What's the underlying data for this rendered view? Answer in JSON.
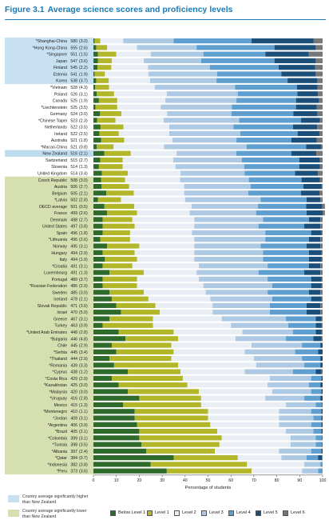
{
  "figure": {
    "number": "Figure 3.1",
    "title": "Average science scores and proficiency levels"
  },
  "legend_groups": [
    {
      "label": "Country average significantly higher than New Zealand",
      "color": "#c8e1f2"
    },
    {
      "label": "Country average significantly lower than New Zealand",
      "color": "#d5dfb0"
    }
  ],
  "colors": {
    "group_higher": "#c8e1f2",
    "group_similar": "#ffffff",
    "group_lower": "#d5dfb0",
    "nz_highlight": "#bfdcef",
    "axis": "#555555"
  },
  "chart_data": {
    "type": "bar",
    "orientation": "horizontal-stacked",
    "xlabel": "Percentage of students",
    "xlim": [
      0,
      100
    ],
    "x_ticks": [
      0,
      10,
      20,
      30,
      40,
      50,
      60,
      70,
      80,
      90,
      100
    ],
    "levels": [
      {
        "name": "Below Level 1",
        "color": "#2d6a2b"
      },
      {
        "name": "Level 1",
        "color": "#b2b629"
      },
      {
        "name": "Level 2",
        "color": "#e9eef5"
      },
      {
        "name": "Level 3",
        "color": "#aec9e3"
      },
      {
        "name": "Level 4",
        "color": "#5f9fd0"
      },
      {
        "name": "Level 5",
        "color": "#1b4f7a"
      },
      {
        "name": "Level 6",
        "color": "#777777"
      }
    ],
    "rows": [
      {
        "country": "*Shanghai-China",
        "score": "580",
        "se": "(3.0)",
        "group": "higher",
        "dist": [
          0.5,
          2.5,
          10,
          22,
          34,
          27,
          4
        ]
      },
      {
        "country": "*Hong Kong-China",
        "score": "555",
        "se": "(2.6)",
        "group": "higher",
        "dist": [
          1.2,
          4.8,
          13,
          26,
          34,
          18,
          3
        ]
      },
      {
        "country": "*Singapore",
        "score": "551",
        "se": "(1.5)",
        "group": "higher",
        "dist": [
          2,
          8,
          15,
          23,
          27,
          19,
          6
        ]
      },
      {
        "country": "Japan",
        "score": "547",
        "se": "(3.6)",
        "group": "higher",
        "dist": [
          2,
          6,
          14,
          25,
          32,
          18,
          3
        ]
      },
      {
        "country": "Finland",
        "score": "545",
        "se": "(2.2)",
        "group": "higher",
        "dist": [
          1.8,
          6,
          16,
          27,
          30,
          16,
          3.2
        ]
      },
      {
        "country": "Estonia",
        "score": "541",
        "se": "(1.9)",
        "group": "higher",
        "dist": [
          0.5,
          4.5,
          19,
          30,
          28,
          15,
          3
        ]
      },
      {
        "country": "Korea",
        "score": "538",
        "se": "(3.7)",
        "group": "higher",
        "dist": [
          1.2,
          5.5,
          18,
          29,
          31,
          13,
          2.3
        ]
      },
      {
        "country": "*Vietnam",
        "score": "528",
        "se": "(4.3)",
        "group": "similar",
        "dist": [
          0.8,
          6,
          20,
          35,
          27,
          9,
          2.2
        ]
      },
      {
        "country": "Poland",
        "score": "526",
        "se": "(3.1)",
        "group": "similar",
        "dist": [
          1.4,
          7.6,
          23,
          31,
          26,
          9,
          2
        ]
      },
      {
        "country": "Canada",
        "score": "525",
        "se": "(1.9)",
        "group": "similar",
        "dist": [
          2.4,
          8,
          21,
          31,
          26,
          10,
          1.6
        ]
      },
      {
        "country": "*Liechtenstein",
        "score": "525",
        "se": "(3.5)",
        "group": "similar",
        "dist": [
          0.9,
          9.5,
          19,
          31,
          28,
          9,
          2.6
        ]
      },
      {
        "country": "Germany",
        "score": "524",
        "se": "(3.0)",
        "group": "similar",
        "dist": [
          2.9,
          9.3,
          20,
          28,
          27,
          10.5,
          2.3
        ]
      },
      {
        "country": "*Chinese Taipei",
        "score": "523",
        "se": "(2.3)",
        "group": "similar",
        "dist": [
          1.6,
          8,
          21,
          33,
          27,
          8.2,
          1.2
        ]
      },
      {
        "country": "Netherlands",
        "score": "522",
        "se": "(3.5)",
        "group": "similar",
        "dist": [
          3.1,
          10,
          20,
          28,
          26,
          10.5,
          2.4
        ]
      },
      {
        "country": "Ireland",
        "score": "522",
        "se": "(2.5)",
        "group": "similar",
        "dist": [
          2.6,
          8.5,
          22,
          31,
          25,
          9.5,
          1.4
        ]
      },
      {
        "country": "Australia",
        "score": "521",
        "se": "(1.8)",
        "group": "similar",
        "dist": [
          3.4,
          10,
          21,
          28,
          24,
          11,
          2.6
        ]
      },
      {
        "country": "*Macao-China",
        "score": "521",
        "se": "(0.8)",
        "group": "similar",
        "dist": [
          1.4,
          7.4,
          22,
          36,
          26,
          6.5,
          0.7
        ]
      },
      {
        "country": "New Zealand",
        "score": "516",
        "se": "(2.1)",
        "group": "nz",
        "dist": [
          4.7,
          11.6,
          20,
          26,
          24,
          11,
          2.7
        ]
      },
      {
        "country": "Switzerland",
        "score": "515",
        "se": "(2.7)",
        "group": "similar",
        "dist": [
          3,
          9.8,
          22,
          30,
          25,
          9,
          1.2
        ]
      },
      {
        "country": "Slovenia",
        "score": "514",
        "se": "(1.3)",
        "group": "similar",
        "dist": [
          2.4,
          10.4,
          23,
          30,
          24,
          9,
          1.2
        ]
      },
      {
        "country": "United Kingdom",
        "score": "514",
        "se": "(3.4)",
        "group": "similar",
        "dist": [
          3.7,
          11.3,
          23,
          28,
          22,
          10,
          2
        ]
      },
      {
        "country": "Czech Republic",
        "score": "508",
        "se": "(3.0)",
        "group": "lower",
        "dist": [
          3.3,
          10.5,
          24,
          30,
          23,
          8,
          1.2
        ]
      },
      {
        "country": "Austria",
        "score": "506",
        "se": "(2.7)",
        "group": "lower",
        "dist": [
          3.6,
          12,
          24,
          29,
          23,
          8,
          0.4
        ]
      },
      {
        "country": "Belgium",
        "score": "505",
        "se": "(2.1)",
        "group": "lower",
        "dist": [
          5.6,
          12,
          22,
          28,
          23,
          8,
          1.4
        ]
      },
      {
        "country": "*Latvia",
        "score": "502",
        "se": "(2.8)",
        "group": "lower",
        "dist": [
          2,
          10,
          28,
          33,
          20,
          6,
          1
        ]
      },
      {
        "country": "OECD average",
        "score": "501",
        "se": "(0.5)",
        "group": "lower",
        "dist": [
          4.8,
          13,
          25,
          29,
          21,
          7,
          1.2
        ]
      },
      {
        "country": "France",
        "score": "499",
        "se": "(2.6)",
        "group": "lower",
        "dist": [
          6,
          13,
          23,
          29,
          22,
          7,
          1
        ]
      },
      {
        "country": "Denmark",
        "score": "498",
        "se": "(2.7)",
        "group": "lower",
        "dist": [
          4,
          13,
          27,
          30,
          20,
          5,
          1
        ]
      },
      {
        "country": "United States",
        "score": "497",
        "se": "(3.8)",
        "group": "lower",
        "dist": [
          4,
          14,
          26,
          28,
          20,
          7,
          1
        ]
      },
      {
        "country": "Spain",
        "score": "496",
        "se": "(1.8)",
        "group": "lower",
        "dist": [
          4,
          12,
          27,
          32,
          20,
          4.5,
          0.5
        ]
      },
      {
        "country": "*Lithuania",
        "score": "496",
        "se": "(2.6)",
        "group": "lower",
        "dist": [
          3,
          13,
          28,
          31,
          19,
          5,
          1
        ]
      },
      {
        "country": "Norway",
        "score": "495",
        "se": "(3.1)",
        "group": "lower",
        "dist": [
          6,
          14,
          24,
          29,
          20,
          6,
          1
        ]
      },
      {
        "country": "Hungary",
        "score": "494",
        "se": "(2.9)",
        "group": "lower",
        "dist": [
          4,
          14,
          26,
          30,
          20,
          5.5,
          0.5
        ]
      },
      {
        "country": "Italy",
        "score": "494",
        "se": "(1.9)",
        "group": "lower",
        "dist": [
          5,
          14,
          25,
          30,
          20,
          5.5,
          0.5
        ]
      },
      {
        "country": "*Croatia",
        "score": "491",
        "se": "(3.1)",
        "group": "lower",
        "dist": [
          4,
          13,
          29,
          30,
          18,
          5,
          1
        ]
      },
      {
        "country": "Luxembourg",
        "score": "491",
        "se": "(1.3)",
        "group": "lower",
        "dist": [
          7,
          15,
          23,
          27,
          20,
          7,
          1
        ]
      },
      {
        "country": "Portugal",
        "score": "489",
        "se": "(3.7)",
        "group": "lower",
        "dist": [
          4,
          15,
          27,
          30,
          19,
          4.5,
          0.5
        ]
      },
      {
        "country": "*Russian Federation",
        "score": "486",
        "se": "(2.9)",
        "group": "lower",
        "dist": [
          4,
          15,
          29,
          30,
          17,
          4.5,
          0.5
        ]
      },
      {
        "country": "Sweden",
        "score": "485",
        "se": "(3.0)",
        "group": "lower",
        "dist": [
          7,
          15,
          27,
          27,
          18,
          5,
          1
        ]
      },
      {
        "country": "Iceland",
        "score": "478",
        "se": "(2.1)",
        "group": "lower",
        "dist": [
          8,
          16,
          27,
          27,
          17,
          4.5,
          0.5
        ]
      },
      {
        "country": "Slovak Republic",
        "score": "471",
        "se": "(3.6)",
        "group": "lower",
        "dist": [
          10,
          17,
          25,
          25,
          16,
          6,
          1
        ]
      },
      {
        "country": "Israel",
        "score": "470",
        "se": "(5.0)",
        "group": "lower",
        "dist": [
          12,
          17,
          23,
          25,
          16,
          6,
          1
        ]
      },
      {
        "country": "Greece",
        "score": "467",
        "se": "(3.1)",
        "group": "lower",
        "dist": [
          7,
          19,
          30,
          28,
          13,
          2.5,
          0.5
        ]
      },
      {
        "country": "Turkey",
        "score": "463",
        "se": "(3.9)",
        "group": "lower",
        "dist": [
          4,
          22,
          34,
          25,
          12,
          2.5,
          0.5
        ]
      },
      {
        "country": "*United Arab Emirates",
        "score": "448",
        "se": "(2.8)",
        "group": "lower",
        "dist": [
          11,
          24,
          30,
          22,
          10,
          2.5,
          0.5
        ]
      },
      {
        "country": "*Bulgaria",
        "score": "446",
        "se": "(4.8)",
        "group": "lower",
        "dist": [
          14,
          23,
          25,
          22,
          12,
          3.5,
          0.5
        ]
      },
      {
        "country": "Chile",
        "score": "445",
        "se": "(2.9)",
        "group": "lower",
        "dist": [
          8,
          26,
          35,
          22,
          8,
          1,
          0
        ]
      },
      {
        "country": "*Serbia",
        "score": "445",
        "se": "(3.4)",
        "group": "lower",
        "dist": [
          10,
          25,
          31,
          22,
          10,
          2,
          0
        ]
      },
      {
        "country": "*Thailand",
        "score": "444",
        "se": "(2.9)",
        "group": "lower",
        "dist": [
          7,
          27,
          36,
          21,
          8,
          1,
          0
        ]
      },
      {
        "country": "*Romania",
        "score": "439",
        "se": "(3.3)",
        "group": "lower",
        "dist": [
          9,
          28,
          34,
          21,
          7,
          1,
          0
        ]
      },
      {
        "country": "*Cyprus",
        "score": "438",
        "se": "(1.2)",
        "group": "lower",
        "dist": [
          15,
          23,
          28,
          21,
          10,
          2.5,
          0.5
        ]
      },
      {
        "country": "*Costa Rica",
        "score": "429",
        "se": "(2.9)",
        "group": "lower",
        "dist": [
          8,
          31,
          38,
          18,
          4.5,
          0.5,
          0
        ]
      },
      {
        "country": "*Kazakhstan",
        "score": "425",
        "se": "(3.0)",
        "group": "lower",
        "dist": [
          11,
          30,
          35,
          18,
          5,
          1,
          0
        ]
      },
      {
        "country": "*Malaysia",
        "score": "420",
        "se": "(3.0)",
        "group": "lower",
        "dist": [
          15,
          31,
          32,
          17,
          4.5,
          0.5,
          0
        ]
      },
      {
        "country": "*Uruguay",
        "score": "416",
        "se": "(2.8)",
        "group": "lower",
        "dist": [
          20,
          27,
          28,
          17,
          7,
          1,
          0
        ]
      },
      {
        "country": "Mexico",
        "score": "415",
        "se": "(1.3)",
        "group": "lower",
        "dist": [
          13,
          34,
          37,
          13,
          2.8,
          0.2,
          0
        ]
      },
      {
        "country": "*Montenegro",
        "score": "410",
        "se": "(1.1)",
        "group": "lower",
        "dist": [
          18,
          32,
          31,
          14,
          4.5,
          0.5,
          0
        ]
      },
      {
        "country": "*Jordan",
        "score": "409",
        "se": "(3.1)",
        "group": "lower",
        "dist": [
          18,
          32,
          31,
          15,
          3.5,
          0.5,
          0
        ]
      },
      {
        "country": "*Argentina",
        "score": "406",
        "se": "(3.9)",
        "group": "lower",
        "dist": [
          19,
          32,
          30,
          14,
          4.5,
          0.5,
          0
        ]
      },
      {
        "country": "*Brazil",
        "score": "405",
        "se": "(2.1)",
        "group": "lower",
        "dist": [
          20,
          34,
          30,
          12,
          3.5,
          0.5,
          0
        ]
      },
      {
        "country": "*Colombia",
        "score": "399",
        "se": "(3.1)",
        "group": "lower",
        "dist": [
          20,
          36,
          30,
          11,
          2.8,
          0.2,
          0
        ]
      },
      {
        "country": "*Tunisia",
        "score": "398",
        "se": "(3.5)",
        "group": "lower",
        "dist": [
          21,
          34,
          31,
          11,
          2.8,
          0.2,
          0
        ]
      },
      {
        "country": "*Albania",
        "score": "397",
        "se": "(2.4)",
        "group": "lower",
        "dist": [
          23,
          30,
          28,
          14,
          4.5,
          0.5,
          0
        ]
      },
      {
        "country": "*Qatar",
        "score": "384",
        "se": "(0.7)",
        "group": "lower",
        "dist": [
          35,
          28,
          19,
          11,
          5,
          1.7,
          0.3
        ]
      },
      {
        "country": "*Indonesia",
        "score": "382",
        "se": "(3.8)",
        "group": "lower",
        "dist": [
          25,
          42,
          25,
          7,
          1,
          0,
          0
        ]
      },
      {
        "country": "*Peru",
        "score": "373",
        "se": "(3.6)",
        "group": "lower",
        "dist": [
          32,
          37,
          22,
          7,
          2,
          0,
          0
        ]
      }
    ]
  }
}
